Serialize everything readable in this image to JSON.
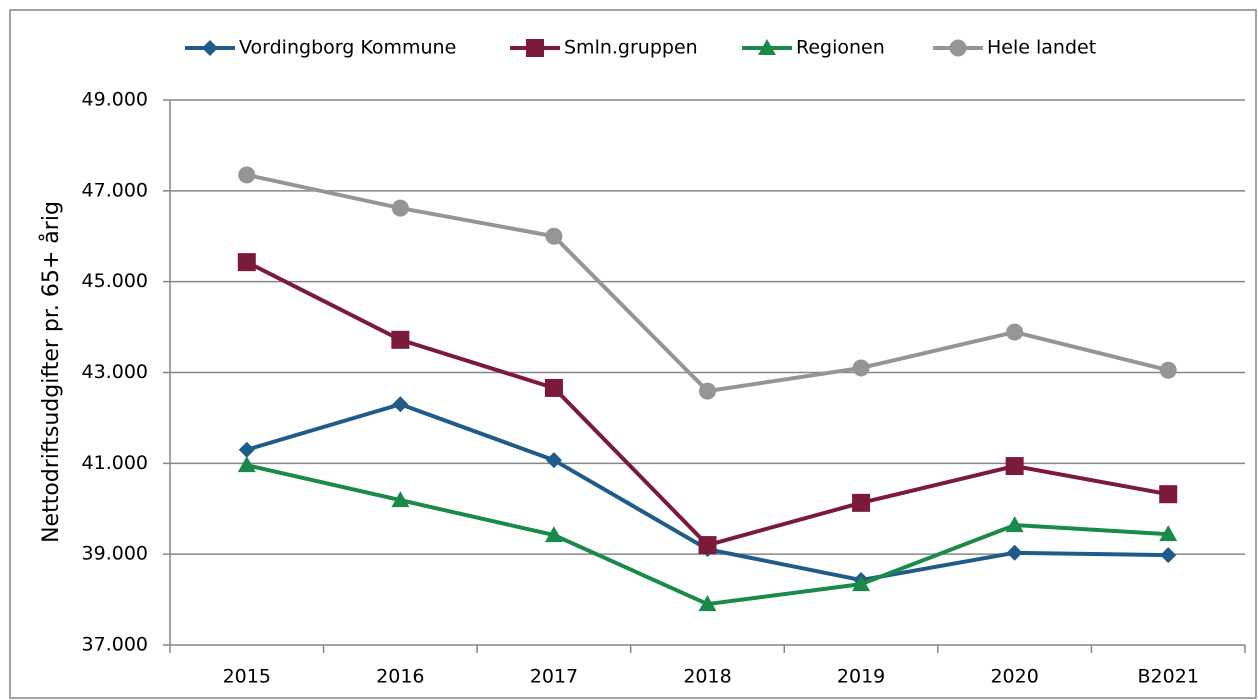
{
  "chart_data": {
    "type": "line",
    "y_label": "Nettodriftsudgifter pr. 65+ årig",
    "categories": [
      "2015",
      "2016",
      "2017",
      "2018",
      "2019",
      "2020",
      "B2021"
    ],
    "series": [
      {
        "name": "Vordingborg Kommune",
        "color": "#1f5c8b",
        "marker": "diamond",
        "values": [
          41300,
          42300,
          41070,
          39110,
          38430,
          39030,
          38980
        ]
      },
      {
        "name": "Smln.gruppen",
        "color": "#7b1a3a",
        "marker": "square",
        "values": [
          45430,
          43720,
          42660,
          39200,
          40130,
          40940,
          40320
        ]
      },
      {
        "name": "Regionen",
        "color": "#1a8a4a",
        "marker": "triangle",
        "values": [
          40960,
          40190,
          39420,
          37900,
          38340,
          39640,
          39440
        ]
      },
      {
        "name": "Hele landet",
        "color": "#959595",
        "marker": "circle",
        "values": [
          47350,
          46620,
          46000,
          42590,
          43100,
          43890,
          43050
        ]
      }
    ],
    "ylim": [
      37000,
      49000
    ],
    "yticks": [
      {
        "value": 37000,
        "label": "37.000"
      },
      {
        "value": 39000,
        "label": "39.000"
      },
      {
        "value": 41000,
        "label": "41.000"
      },
      {
        "value": 43000,
        "label": "43.000"
      },
      {
        "value": 45000,
        "label": "45.000"
      },
      {
        "value": 47000,
        "label": "47.000"
      },
      {
        "value": 49000,
        "label": "49.000"
      }
    ],
    "grid": true,
    "legend": "top"
  }
}
